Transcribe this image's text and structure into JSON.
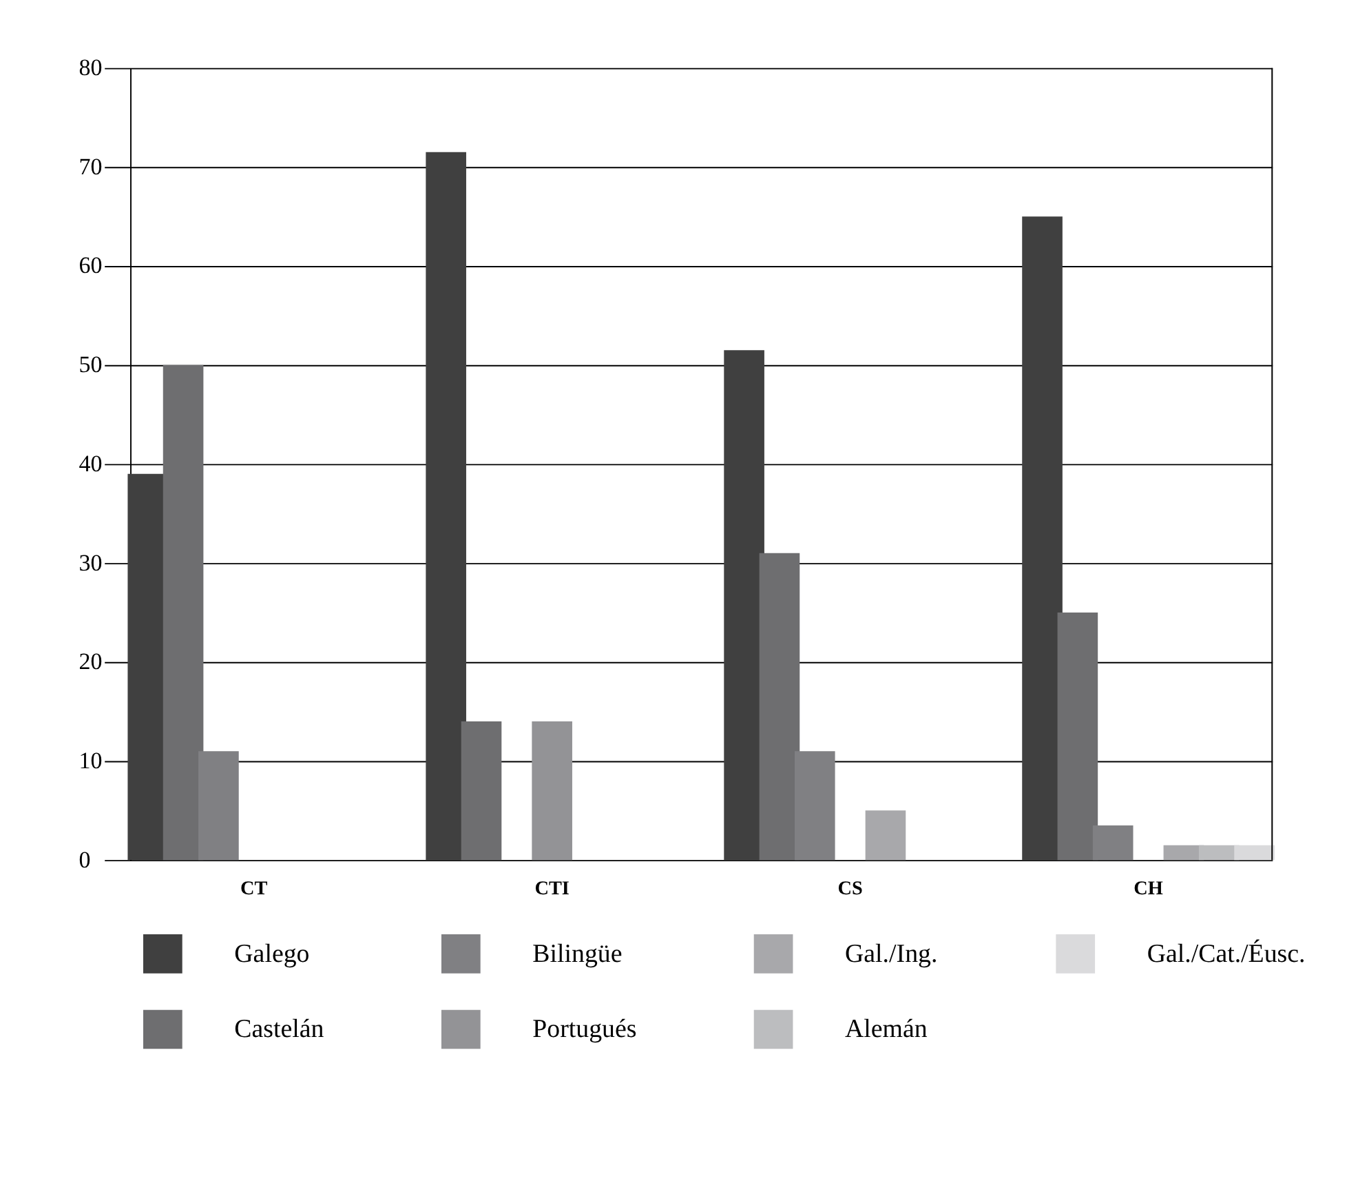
{
  "chart_data": {
    "type": "bar",
    "categories": [
      "CT",
      "CTI",
      "CS",
      "CH"
    ],
    "series": [
      {
        "name": "Galego",
        "color": "#404040",
        "values": [
          39,
          71.5,
          51.5,
          65
        ]
      },
      {
        "name": "Castelán",
        "color": "#6e6e70",
        "values": [
          50,
          14,
          31,
          25
        ]
      },
      {
        "name": "Bilingüe",
        "color": "#808083",
        "values": [
          11,
          null,
          11,
          3.5
        ]
      },
      {
        "name": "Portugués",
        "color": "#939396",
        "values": [
          null,
          14,
          null,
          null
        ]
      },
      {
        "name": "Gal./Ing.",
        "color": "#a8a8ab",
        "values": [
          null,
          null,
          5,
          1.5
        ]
      },
      {
        "name": "Alemán",
        "color": "#bcbdbf",
        "values": [
          null,
          null,
          null,
          1.5
        ]
      },
      {
        "name": "Gal./Cat./Éusc.",
        "color": "#dadadc",
        "values": [
          null,
          null,
          null,
          1.5
        ]
      }
    ],
    "ylim": [
      0,
      80
    ],
    "yticks": [
      0,
      10,
      20,
      30,
      40,
      50,
      60,
      70,
      80
    ],
    "grid": "y",
    "legend": "bottom"
  }
}
